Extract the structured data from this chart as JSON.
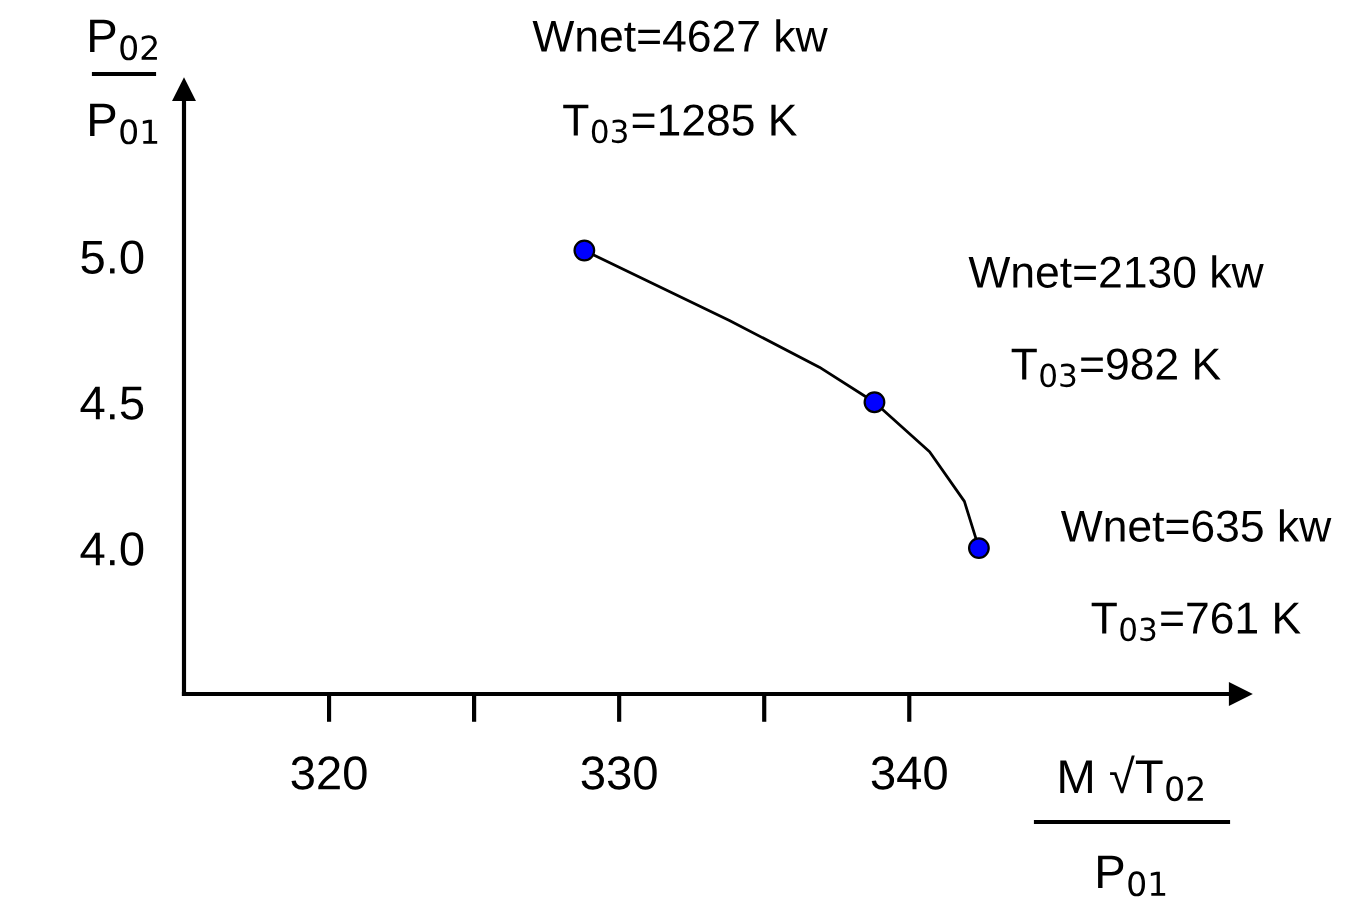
{
  "chart_data": {
    "type": "scatter",
    "xlabel": "M √T$_{02}$\nP$_{01}$",
    "ylabel": "P$_{02}$\nP$_{01}$",
    "xlim": [
      315,
      351.4
    ],
    "ylim": [
      3.5,
      5.57
    ],
    "xticks": [
      320,
      {
        "value": 325,
        "label": null
      },
      330,
      {
        "value": 335,
        "label": null
      },
      340
    ],
    "yticks": [
      {
        "value": 4.0,
        "label": "4.0"
      },
      {
        "value": 4.5,
        "label": "4.5"
      },
      {
        "value": 5.0,
        "label": "5.0"
      }
    ],
    "series": [
      {
        "color": "#0000ff",
        "x": [
          328.8,
          338.8,
          342.4
        ],
        "values": [
          5.02,
          4.5,
          4.0
        ],
        "marker": "circle"
      },
      {
        "type": "line",
        "color": "#000000",
        "x": [
          328.8,
          333.8,
          336.9,
          338.8,
          340.7,
          341.9,
          342.4
        ],
        "values": [
          5.02,
          4.78,
          4.62,
          4.5,
          4.33,
          4.16,
          4.0
        ],
        "marker": "none"
      }
    ],
    "annotations": [
      "Wnet=4627 kw",
      "T$_{03}$=1285 K",
      "Wnet=2130 kw",
      "T$_{03}$=982 K",
      "Wnet=635 kw",
      "T$_{03}$=761 K"
    ],
    "grid": false,
    "legend": false
  }
}
